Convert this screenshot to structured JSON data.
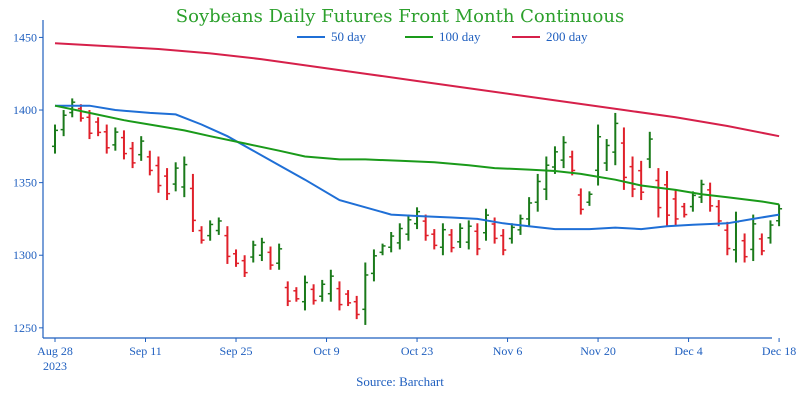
{
  "chart_data": {
    "type": "line",
    "title": "Soybeans Daily Futures Front Month Continuous",
    "source": "Source: Barchart",
    "x_tick_labels": [
      "Aug 28",
      "Sep 11",
      "Sep 25",
      "Oct 9",
      "Oct 23",
      "Nov 6",
      "Nov 20",
      "Dec 4",
      "Dec 18"
    ],
    "x_year_label": "2023",
    "y_ticks": [
      1250,
      1300,
      1350,
      1400,
      1450
    ],
    "ylim": [
      1243,
      1462
    ],
    "grid": false,
    "legend_position": "top-center",
    "colors": {
      "title": "#2ca02c",
      "axis": "#1f5fbf",
      "up_bar": "#1a7a1a",
      "down_bar": "#e0202a",
      "ma50": "#1f6fd6",
      "ma100": "#1a9a1a",
      "ma200": "#d6204a"
    },
    "series": [
      {
        "name": "50 day",
        "color": "#1f6fd6",
        "points": [
          [
            0,
            1403
          ],
          [
            4,
            1403
          ],
          [
            7,
            1400
          ],
          [
            11,
            1398
          ],
          [
            14,
            1397
          ],
          [
            17,
            1390
          ],
          [
            20,
            1382
          ],
          [
            23,
            1372
          ],
          [
            26,
            1362
          ],
          [
            29,
            1352
          ],
          [
            33,
            1338
          ],
          [
            36,
            1333
          ],
          [
            39,
            1328
          ],
          [
            42,
            1327
          ],
          [
            46,
            1326
          ],
          [
            49,
            1325
          ],
          [
            52,
            1322
          ],
          [
            55,
            1320
          ],
          [
            58,
            1318
          ],
          [
            62,
            1318
          ],
          [
            65,
            1319
          ],
          [
            68,
            1318
          ],
          [
            71,
            1320
          ],
          [
            74,
            1321
          ],
          [
            78,
            1322
          ],
          [
            81,
            1325
          ],
          [
            84,
            1328
          ]
        ]
      },
      {
        "name": "100 day",
        "color": "#1a9a1a",
        "points": [
          [
            0,
            1403
          ],
          [
            4,
            1398
          ],
          [
            8,
            1393
          ],
          [
            12,
            1389
          ],
          [
            15,
            1386
          ],
          [
            18,
            1382
          ],
          [
            22,
            1377
          ],
          [
            26,
            1372
          ],
          [
            29,
            1368
          ],
          [
            33,
            1366
          ],
          [
            36,
            1366
          ],
          [
            40,
            1365
          ],
          [
            44,
            1364
          ],
          [
            48,
            1362
          ],
          [
            51,
            1360
          ],
          [
            55,
            1359
          ],
          [
            58,
            1358
          ],
          [
            61,
            1356
          ],
          [
            65,
            1352
          ],
          [
            68,
            1348
          ],
          [
            72,
            1345
          ],
          [
            75,
            1342
          ],
          [
            78,
            1340
          ],
          [
            82,
            1337
          ],
          [
            84,
            1335
          ]
        ]
      },
      {
        "name": "200 day",
        "color": "#d6204a",
        "points": [
          [
            0,
            1446
          ],
          [
            6,
            1444
          ],
          [
            12,
            1442
          ],
          [
            18,
            1439
          ],
          [
            24,
            1435
          ],
          [
            30,
            1430
          ],
          [
            36,
            1425
          ],
          [
            42,
            1420
          ],
          [
            48,
            1415
          ],
          [
            54,
            1410
          ],
          [
            60,
            1405
          ],
          [
            66,
            1400
          ],
          [
            72,
            1395
          ],
          [
            78,
            1389
          ],
          [
            84,
            1382
          ]
        ]
      }
    ],
    "price_bars": [
      [
        0,
        1390,
        1370
      ],
      [
        1,
        1400,
        1382
      ],
      [
        2,
        1408,
        1395
      ],
      [
        3,
        1404,
        1392
      ],
      [
        4,
        1400,
        1380
      ],
      [
        5,
        1395,
        1382
      ],
      [
        6,
        1390,
        1370
      ],
      [
        7,
        1388,
        1372
      ],
      [
        8,
        1386,
        1366
      ],
      [
        9,
        1378,
        1360
      ],
      [
        10,
        1382,
        1365
      ],
      [
        11,
        1372,
        1355
      ],
      [
        12,
        1368,
        1343
      ],
      [
        13,
        1360,
        1338
      ],
      [
        14,
        1364,
        1344
      ],
      [
        15,
        1368,
        1340
      ],
      [
        16,
        1356,
        1316
      ],
      [
        17,
        1320,
        1308
      ],
      [
        18,
        1324,
        1310
      ],
      [
        19,
        1326,
        1314
      ],
      [
        20,
        1320,
        1294
      ],
      [
        21,
        1304,
        1292
      ],
      [
        22,
        1300,
        1285
      ],
      [
        23,
        1310,
        1295
      ],
      [
        24,
        1312,
        1296
      ],
      [
        25,
        1306,
        1290
      ],
      [
        26,
        1308,
        1290
      ],
      [
        27,
        1282,
        1265
      ],
      [
        28,
        1278,
        1268
      ],
      [
        29,
        1286,
        1262
      ],
      [
        30,
        1280,
        1266
      ],
      [
        31,
        1283,
        1268
      ],
      [
        32,
        1290,
        1268
      ],
      [
        33,
        1282,
        1262
      ],
      [
        34,
        1276,
        1265
      ],
      [
        35,
        1272,
        1256
      ],
      [
        36,
        1295,
        1252
      ],
      [
        37,
        1304,
        1282
      ],
      [
        38,
        1308,
        1300
      ],
      [
        39,
        1316,
        1302
      ],
      [
        40,
        1322,
        1304
      ],
      [
        41,
        1328,
        1310
      ],
      [
        42,
        1333,
        1318
      ],
      [
        43,
        1328,
        1310
      ],
      [
        44,
        1318,
        1304
      ],
      [
        45,
        1322,
        1300
      ],
      [
        46,
        1318,
        1302
      ],
      [
        47,
        1322,
        1305
      ],
      [
        48,
        1324,
        1304
      ],
      [
        49,
        1322,
        1300
      ],
      [
        50,
        1332,
        1310
      ],
      [
        51,
        1326,
        1308
      ],
      [
        52,
        1318,
        1300
      ],
      [
        53,
        1322,
        1308
      ],
      [
        54,
        1328,
        1314
      ],
      [
        55,
        1340,
        1320
      ],
      [
        56,
        1356,
        1330
      ],
      [
        57,
        1368,
        1338
      ],
      [
        58,
        1375,
        1356
      ],
      [
        59,
        1382,
        1360
      ],
      [
        60,
        1372,
        1355
      ],
      [
        61,
        1346,
        1328
      ],
      [
        62,
        1344,
        1334
      ],
      [
        63,
        1390,
        1348
      ],
      [
        64,
        1380,
        1358
      ],
      [
        65,
        1398,
        1362
      ],
      [
        66,
        1388,
        1345
      ],
      [
        67,
        1368,
        1340
      ],
      [
        68,
        1365,
        1338
      ],
      [
        69,
        1385,
        1360
      ],
      [
        70,
        1360,
        1326
      ],
      [
        71,
        1358,
        1320
      ],
      [
        72,
        1345,
        1320
      ],
      [
        73,
        1336,
        1326
      ],
      [
        74,
        1344,
        1330
      ],
      [
        75,
        1352,
        1336
      ],
      [
        76,
        1350,
        1330
      ],
      [
        77,
        1338,
        1320
      ],
      [
        78,
        1323,
        1300
      ],
      [
        79,
        1330,
        1295
      ],
      [
        80,
        1315,
        1295
      ],
      [
        81,
        1328,
        1296
      ],
      [
        82,
        1315,
        1300
      ],
      [
        83,
        1324,
        1308
      ],
      [
        84,
        1335,
        1320
      ]
    ]
  }
}
